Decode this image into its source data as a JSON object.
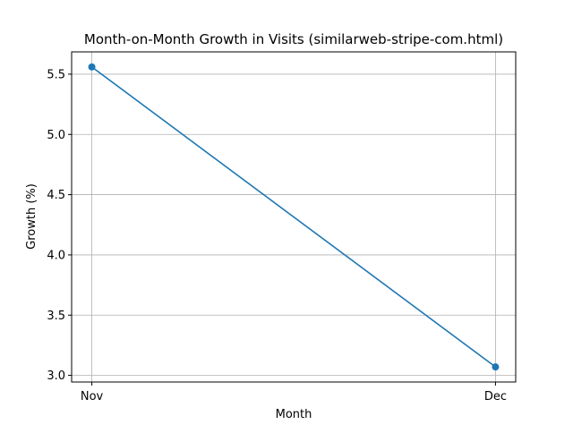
{
  "chart_data": {
    "type": "line",
    "title": "Month-on-Month Growth in Visits (similarweb-stripe-com.html)",
    "xlabel": "Month",
    "ylabel": "Growth (%)",
    "categories": [
      "Nov",
      "Dec"
    ],
    "series": [
      {
        "values": [
          5.56,
          3.07
        ],
        "color": "#1f77b4",
        "marker": "circle"
      }
    ],
    "ylim": [
      2.945,
      5.685
    ],
    "yticks": [
      3.0,
      3.5,
      4.0,
      4.5,
      5.0,
      5.5
    ],
    "grid": true,
    "legend": "none"
  }
}
